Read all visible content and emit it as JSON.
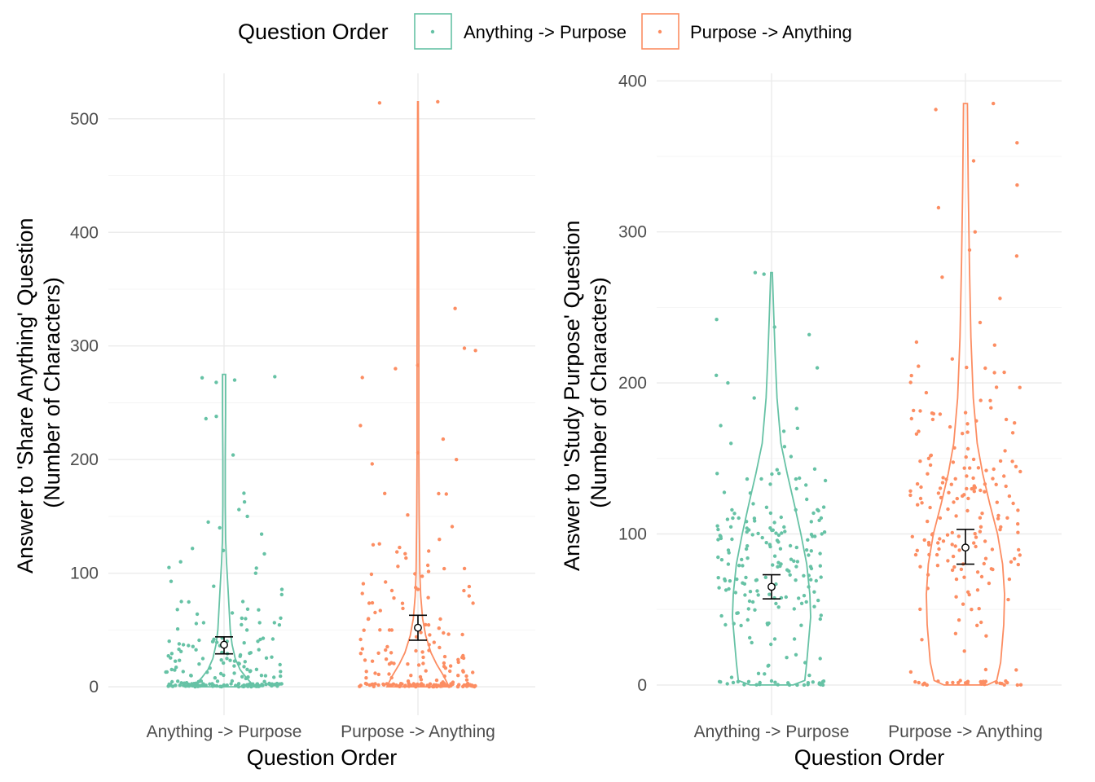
{
  "legend": {
    "title": "Question Order",
    "entries": [
      {
        "label": "Anything -> Purpose",
        "color": "#66c2a5"
      },
      {
        "label": "Purpose -> Anything",
        "color": "#fc8d62"
      }
    ]
  },
  "chart_data": [
    {
      "type": "violin-jitter",
      "xlabel": "Question Order",
      "ylabel_lines": [
        "Answer to 'Share Anything' Question",
        "(Number of Characters)"
      ],
      "ylim": [
        -25,
        540
      ],
      "yticks": [
        0,
        100,
        200,
        300,
        400,
        500
      ],
      "categories": [
        "Anything -> Purpose",
        "Purpose -> Anything"
      ],
      "grid": true,
      "series": [
        {
          "category": "Anything -> Purpose",
          "color": "#66c2a5",
          "mean": 37,
          "ci": [
            29,
            44
          ],
          "violin_max": 275,
          "violin_profile": [
            [
              0,
              1.0
            ],
            [
              2,
              0.92
            ],
            [
              8,
              0.72
            ],
            [
              15,
              0.52
            ],
            [
              25,
              0.36
            ],
            [
              37,
              0.26
            ],
            [
              50,
              0.2
            ],
            [
              70,
              0.16
            ],
            [
              90,
              0.12
            ],
            [
              110,
              0.08
            ],
            [
              130,
              0.05
            ],
            [
              160,
              0.04
            ],
            [
              200,
              0.04
            ],
            [
              240,
              0.05
            ],
            [
              275,
              0.05
            ]
          ],
          "points_notable": [
            0,
            0,
            5,
            10,
            20,
            25,
            30,
            40,
            50,
            60,
            64,
            75,
            100,
            105,
            110,
            120,
            140,
            145,
            150,
            156,
            204,
            236,
            238,
            268,
            270,
            272,
            273
          ]
        },
        {
          "category": "Purpose -> Anything",
          "color": "#fc8d62",
          "mean": 52,
          "ci": [
            41,
            63
          ],
          "violin_max": 515,
          "violin_profile": [
            [
              0,
              1.0
            ],
            [
              3,
              0.95
            ],
            [
              10,
              0.82
            ],
            [
              20,
              0.6
            ],
            [
              30,
              0.42
            ],
            [
              45,
              0.25
            ],
            [
              60,
              0.15
            ],
            [
              80,
              0.09
            ],
            [
              100,
              0.06
            ],
            [
              150,
              0.04
            ],
            [
              200,
              0.03
            ],
            [
              300,
              0.03
            ],
            [
              400,
              0.02
            ],
            [
              515,
              0.01
            ]
          ],
          "points_notable": [
            0,
            0,
            5,
            10,
            20,
            30,
            50,
            80,
            104,
            106,
            125,
            170,
            200,
            206,
            218,
            230,
            280,
            283,
            296,
            298,
            333,
            514,
            515
          ]
        }
      ]
    },
    {
      "type": "violin-jitter",
      "xlabel": "Question Order",
      "ylabel_lines": [
        "Answer to 'Study Purpose' Question",
        "(Number of Characters)"
      ],
      "ylim": [
        -20,
        405
      ],
      "yticks": [
        0,
        100,
        200,
        300,
        400
      ],
      "categories": [
        "Anything -> Purpose",
        "Purpose -> Anything"
      ],
      "grid": true,
      "series": [
        {
          "category": "Anything -> Purpose",
          "color": "#66c2a5",
          "mean": 65,
          "ci": [
            57,
            73
          ],
          "violin_max": 273,
          "violin_profile": [
            [
              0,
              0.55
            ],
            [
              3,
              0.85
            ],
            [
              15,
              0.9
            ],
            [
              30,
              0.95
            ],
            [
              45,
              1.0
            ],
            [
              60,
              0.98
            ],
            [
              80,
              0.9
            ],
            [
              100,
              0.75
            ],
            [
              120,
              0.58
            ],
            [
              140,
              0.4
            ],
            [
              160,
              0.24
            ],
            [
              190,
              0.14
            ],
            [
              220,
              0.09
            ],
            [
              250,
              0.05
            ],
            [
              273,
              0.02
            ]
          ],
          "points_notable": [
            0,
            0,
            5,
            20,
            40,
            60,
            65,
            70,
            80,
            90,
            100,
            120,
            140,
            160,
            168,
            183,
            190,
            200,
            205,
            210,
            232,
            237,
            242,
            272,
            273
          ]
        },
        {
          "category": "Purpose -> Anything",
          "color": "#fc8d62",
          "mean": 91,
          "ci": [
            80,
            103
          ],
          "violin_max": 385,
          "violin_profile": [
            [
              0,
              0.55
            ],
            [
              3,
              0.8
            ],
            [
              15,
              0.9
            ],
            [
              40,
              0.98
            ],
            [
              60,
              1.0
            ],
            [
              80,
              0.95
            ],
            [
              100,
              0.82
            ],
            [
              120,
              0.62
            ],
            [
              140,
              0.44
            ],
            [
              160,
              0.3
            ],
            [
              190,
              0.2
            ],
            [
              230,
              0.14
            ],
            [
              280,
              0.1
            ],
            [
              330,
              0.07
            ],
            [
              385,
              0.05
            ]
          ],
          "points_notable": [
            0,
            0,
            10,
            30,
            50,
            70,
            90,
            100,
            130,
            150,
            180,
            197,
            207,
            225,
            240,
            256,
            270,
            284,
            288,
            300,
            316,
            331,
            347,
            359,
            381,
            385
          ]
        }
      ]
    }
  ]
}
